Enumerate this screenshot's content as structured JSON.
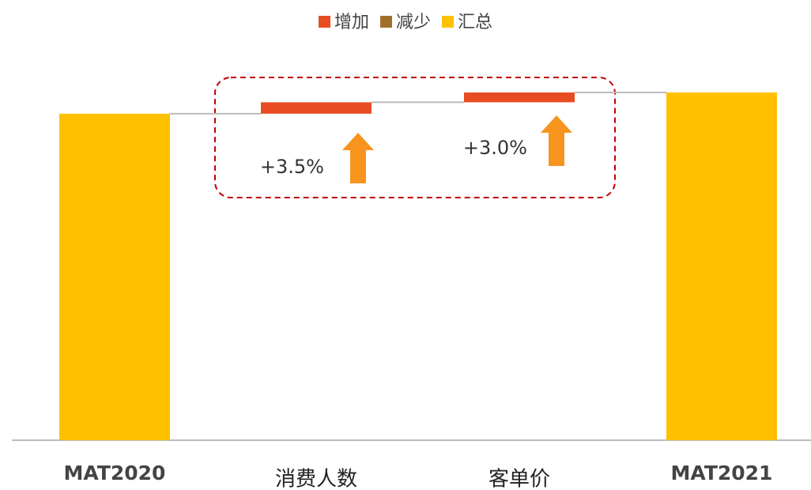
{
  "chart_data": {
    "type": "waterfall",
    "categories": [
      "MAT2020",
      "消费人数",
      "客单价",
      "MAT2021"
    ],
    "series": [
      {
        "name": "增加",
        "color": "#e84c22",
        "values": [
          null,
          3.5,
          3.0,
          null
        ],
        "value_labels": [
          null,
          "+3.5%",
          "+3.0%",
          null
        ]
      },
      {
        "name": "减少",
        "color": "#a0702a",
        "values": [
          null,
          null,
          null,
          null
        ]
      },
      {
        "name": "汇总",
        "color": "#ffc000",
        "values": [
          100,
          null,
          null,
          106.5
        ]
      }
    ],
    "legend": "top"
  }
}
